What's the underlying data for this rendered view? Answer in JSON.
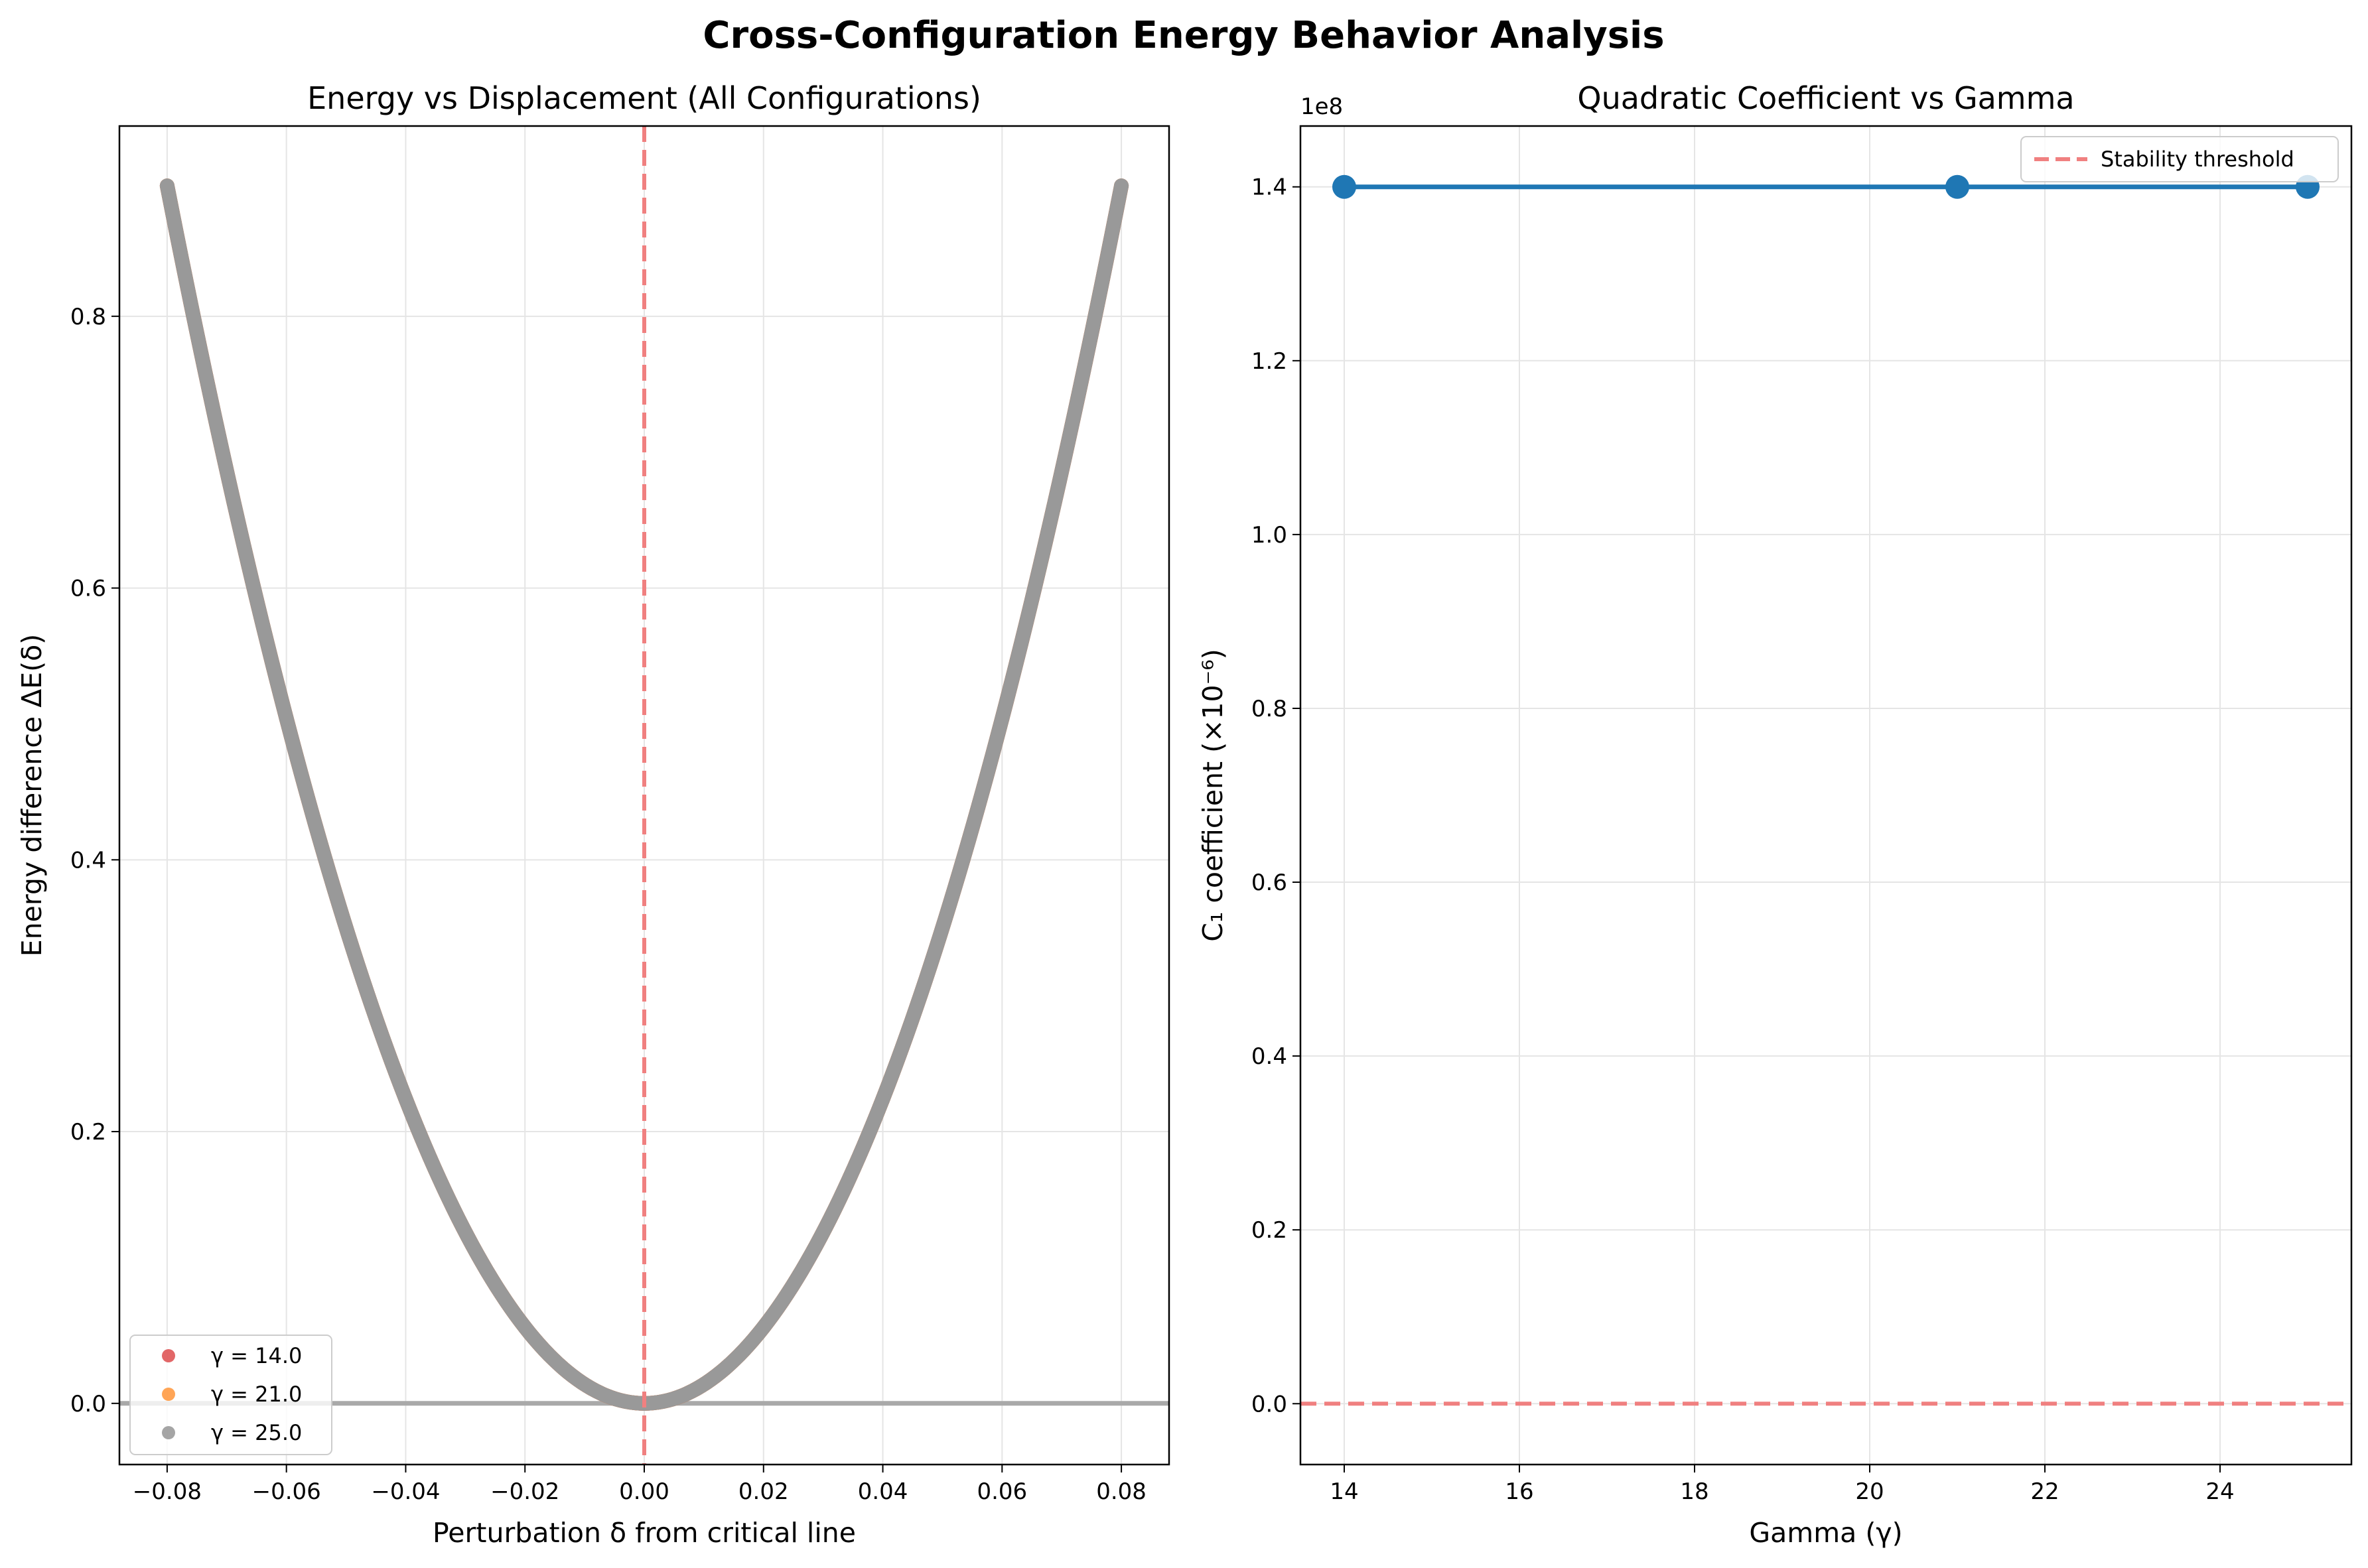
{
  "figure": {
    "title": "Cross-Configuration Energy Behavior Analysis"
  },
  "colors": {
    "gamma_14": "#d62728",
    "gamma_21": "#ff7f0e",
    "gamma_25": "#7f7f7f",
    "curve": "#999999",
    "critical_line": "#f08080",
    "zero_line": "#a9a9a9",
    "coef_line": "#1f77b4",
    "threshold": "#f08080"
  },
  "chart_data": [
    {
      "type": "scatter",
      "title": "Energy vs Displacement (All Configurations)",
      "xlabel": "Perturbation δ from critical line",
      "ylabel": "Energy difference ΔE(δ)",
      "xlim": [
        -0.088,
        0.088
      ],
      "ylim": [
        -0.045,
        0.94
      ],
      "xticks": [
        -0.08,
        -0.06,
        -0.04,
        -0.02,
        0.0,
        0.02,
        0.04,
        0.06,
        0.08
      ],
      "xtick_labels": [
        "−0.08",
        "−0.06",
        "−0.04",
        "−0.02",
        "0.00",
        "0.02",
        "0.04",
        "0.06",
        "0.08"
      ],
      "yticks": [
        0.0,
        0.2,
        0.4,
        0.6,
        0.8
      ],
      "ytick_labels": [
        "0.0",
        "0.2",
        "0.4",
        "0.6",
        "0.8"
      ],
      "grid": true,
      "legend_position": "lower-left",
      "series": [
        {
          "name": "γ = 14.0",
          "x": [
            -0.08,
            -0.06,
            -0.04,
            -0.02,
            0.0,
            0.02,
            0.04,
            0.06,
            0.08
          ],
          "y": [
            0.896,
            0.504,
            0.224,
            0.056,
            0.0,
            0.056,
            0.224,
            0.504,
            0.896
          ]
        },
        {
          "name": "γ = 21.0",
          "x": [
            -0.08,
            -0.06,
            -0.04,
            -0.02,
            0.0,
            0.02,
            0.04,
            0.06,
            0.08
          ],
          "y": [
            0.896,
            0.504,
            0.224,
            0.056,
            0.0,
            0.056,
            0.224,
            0.504,
            0.896
          ]
        },
        {
          "name": "γ = 25.0",
          "x": [
            -0.08,
            -0.06,
            -0.04,
            -0.02,
            0.0,
            0.02,
            0.04,
            0.06,
            0.08
          ],
          "y": [
            0.896,
            0.504,
            0.224,
            0.056,
            0.0,
            0.056,
            0.224,
            0.504,
            0.896
          ]
        }
      ],
      "reference_lines": {
        "vertical_x": 0.0,
        "horizontal_y": 0.0
      }
    },
    {
      "type": "line",
      "title": "Quadratic Coefficient vs Gamma",
      "xlabel": "Gamma (γ)",
      "ylabel": "C₁ coefficient (×10⁻⁶)",
      "offset_text": "1e8",
      "xlim": [
        13.5,
        25.5
      ],
      "ylim": [
        -0.07,
        1.47
      ],
      "xticks": [
        14,
        16,
        18,
        20,
        22,
        24
      ],
      "xtick_labels": [
        "14",
        "16",
        "18",
        "20",
        "22",
        "24"
      ],
      "yticks": [
        0.0,
        0.2,
        0.4,
        0.6,
        0.8,
        1.0,
        1.2,
        1.4
      ],
      "ytick_labels": [
        "0.0",
        "0.2",
        "0.4",
        "0.6",
        "0.8",
        "1.0",
        "1.2",
        "1.4"
      ],
      "grid": true,
      "legend_position": "top-right",
      "x": [
        14,
        21,
        25
      ],
      "y": [
        1.4,
        1.4,
        1.4
      ],
      "threshold": {
        "name": "Stability threshold",
        "y": 0.0
      }
    }
  ]
}
